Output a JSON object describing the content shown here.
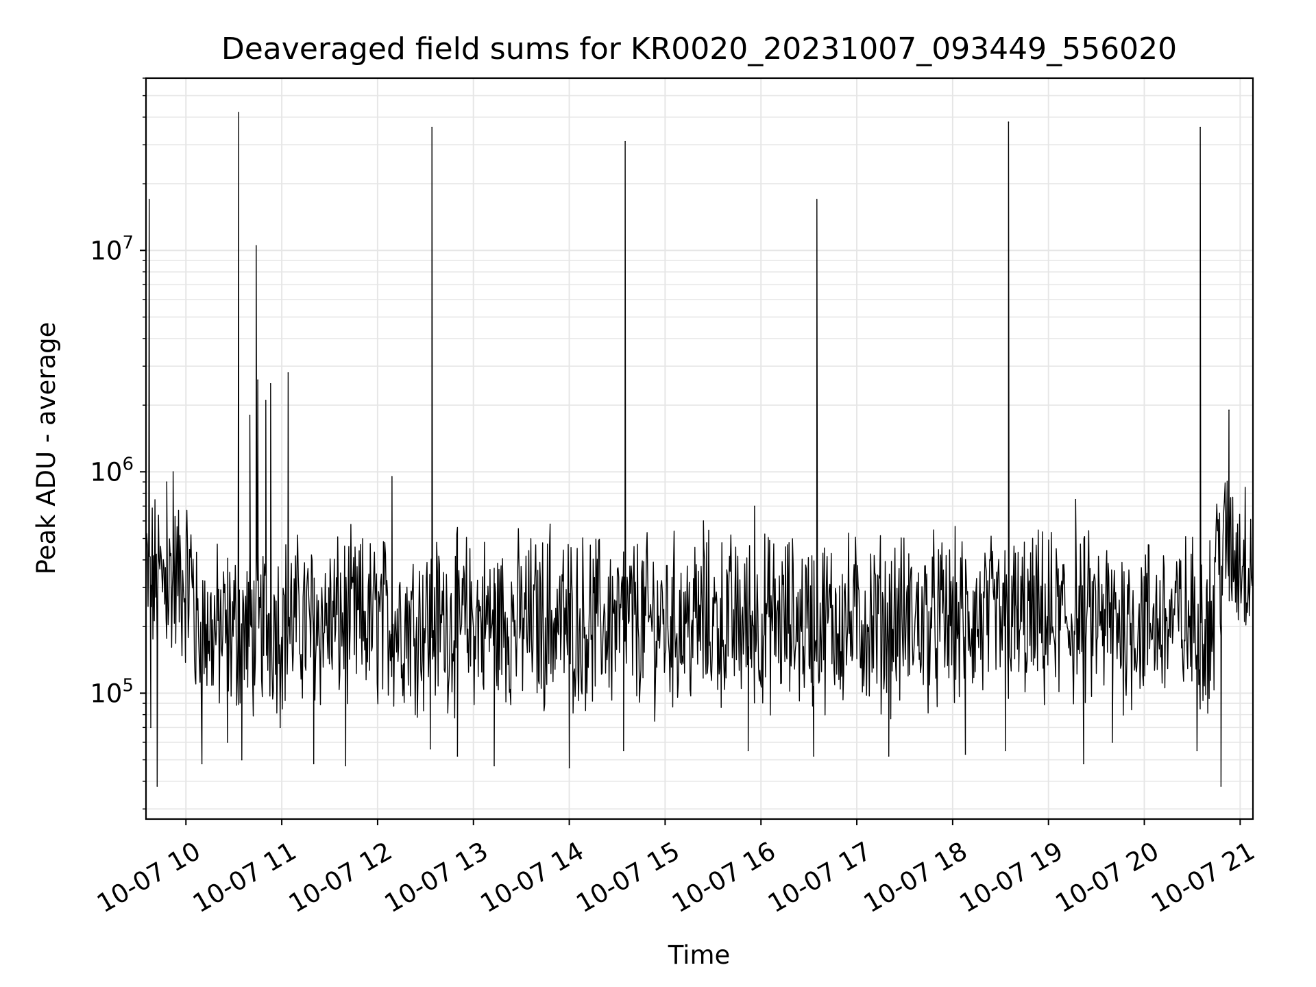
{
  "chart_data": {
    "type": "line",
    "title": "Deaveraged field sums for KR0020_20231007_093449_556020",
    "xlabel": "Time",
    "ylabel": "Peak ADU - average",
    "y_scale": "log",
    "grid": true,
    "legend": "none",
    "line_color": "#000000",
    "grid_color": "#e6e6e6",
    "xlim": [
      "2023-10-07T09:35",
      "2023-10-07T21:08"
    ],
    "ylim": [
      27000,
      60000000
    ],
    "x_tick_labels": [
      "10-07 10",
      "10-07 11",
      "10-07 12",
      "10-07 13",
      "10-07 14",
      "10-07 15",
      "10-07 16",
      "10-07 17",
      "10-07 18",
      "10-07 19",
      "10-07 20",
      "10-07 21"
    ],
    "x_tick_values": [
      "2023-10-07T10:00",
      "2023-10-07T11:00",
      "2023-10-07T12:00",
      "2023-10-07T13:00",
      "2023-10-07T14:00",
      "2023-10-07T15:00",
      "2023-10-07T16:00",
      "2023-10-07T17:00",
      "2023-10-07T18:00",
      "2023-10-07T19:00",
      "2023-10-07T20:00",
      "2023-10-07T21:00"
    ],
    "y_tick_labels": [
      {
        "base": "10",
        "exp": "5",
        "value": 100000
      },
      {
        "base": "10",
        "exp": "6",
        "value": 1000000
      },
      {
        "base": "10",
        "exp": "7",
        "value": 10000000
      }
    ],
    "series": [
      {
        "points": [
          [
            "2023-10-07T09:35",
            420000
          ],
          [
            "2023-10-07T09:37",
            17000000
          ],
          [
            "2023-10-07T09:38",
            70000
          ],
          [
            "2023-10-07T09:42",
            38000
          ],
          [
            "2023-10-07T09:48",
            900000
          ],
          [
            "2023-10-07T09:52",
            1000000
          ],
          [
            "2023-10-07T10:10",
            48000
          ],
          [
            "2023-10-07T10:26",
            60000
          ],
          [
            "2023-10-07T10:33",
            42000000
          ],
          [
            "2023-10-07T10:35",
            50000
          ],
          [
            "2023-10-07T10:40",
            1800000
          ],
          [
            "2023-10-07T10:44",
            10500000
          ],
          [
            "2023-10-07T10:45",
            2600000
          ],
          [
            "2023-10-07T10:50",
            2100000
          ],
          [
            "2023-10-07T10:53",
            2500000
          ],
          [
            "2023-10-07T10:59",
            70000
          ],
          [
            "2023-10-07T11:04",
            2800000
          ],
          [
            "2023-10-07T11:20",
            48000
          ],
          [
            "2023-10-07T11:40",
            47000
          ],
          [
            "2023-10-07T12:09",
            950000
          ],
          [
            "2023-10-07T12:33",
            56000
          ],
          [
            "2023-10-07T12:34",
            36000000
          ],
          [
            "2023-10-07T12:50",
            52000
          ],
          [
            "2023-10-07T13:13",
            47000
          ],
          [
            "2023-10-07T13:48",
            580000
          ],
          [
            "2023-10-07T14:00",
            46000
          ],
          [
            "2023-10-07T14:34",
            55000
          ],
          [
            "2023-10-07T14:35",
            31000000
          ],
          [
            "2023-10-07T15:24",
            600000
          ],
          [
            "2023-10-07T15:56",
            700000
          ],
          [
            "2023-10-07T15:52",
            55000
          ],
          [
            "2023-10-07T16:33",
            52000
          ],
          [
            "2023-10-07T16:35",
            17000000
          ],
          [
            "2023-10-07T17:20",
            52000
          ],
          [
            "2023-10-07T18:08",
            53000
          ],
          [
            "2023-10-07T18:33",
            55000
          ],
          [
            "2023-10-07T18:35",
            38000000
          ],
          [
            "2023-10-07T19:09",
            380000
          ],
          [
            "2023-10-07T19:17",
            750000
          ],
          [
            "2023-10-07T19:22",
            48000
          ],
          [
            "2023-10-07T19:40",
            60000
          ],
          [
            "2023-10-07T20:33",
            55000
          ],
          [
            "2023-10-07T20:35",
            36000000
          ],
          [
            "2023-10-07T20:48",
            38000
          ],
          [
            "2023-10-07T20:53",
            1900000
          ],
          [
            "2023-10-07T21:08",
            420000
          ]
        ]
      }
    ]
  }
}
